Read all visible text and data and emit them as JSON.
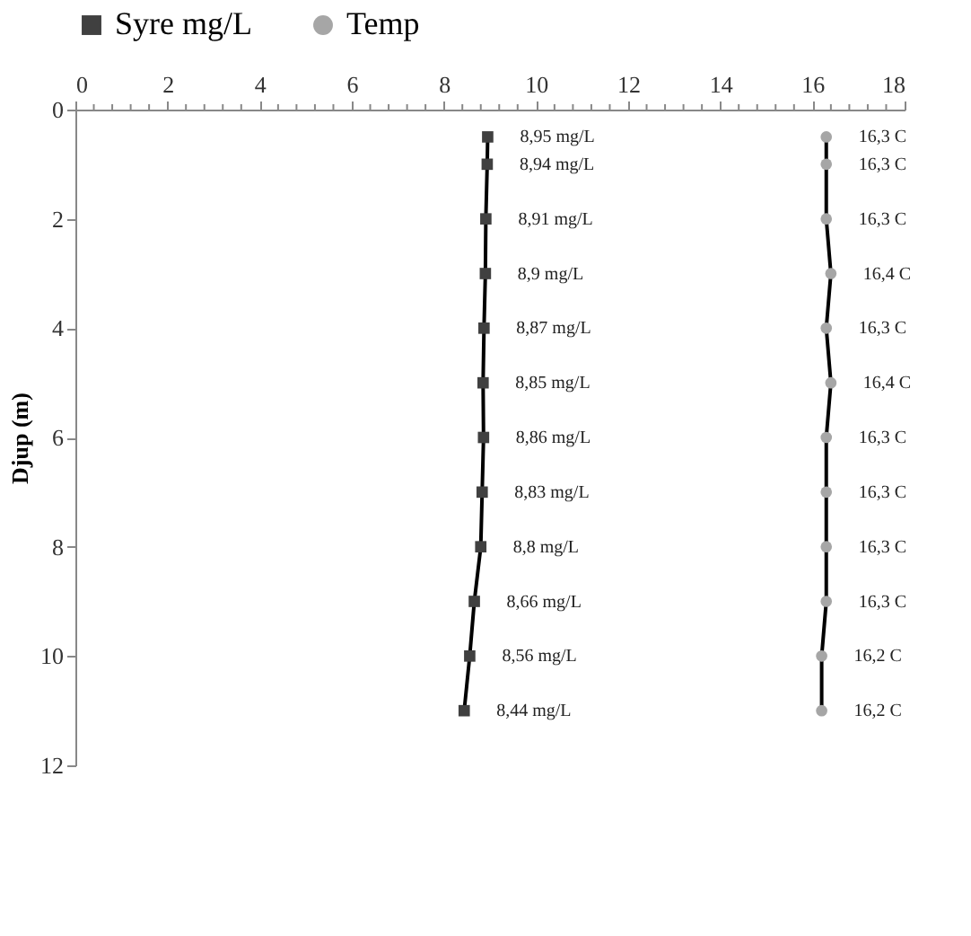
{
  "chart_data": {
    "type": "line",
    "ylabel": "Djup (m)",
    "xlim": [
      0,
      18
    ],
    "xticks": [
      0,
      {
        "value": 0.4,
        "label": null
      },
      {
        "value": 0.8,
        "label": null
      },
      {
        "value": 1.2,
        "label": null
      },
      {
        "value": 1.6,
        "label": null
      },
      2,
      {
        "value": 2.4,
        "label": null
      },
      {
        "value": 2.8,
        "label": null
      },
      {
        "value": 3.2,
        "label": null
      },
      {
        "value": 3.6,
        "label": null
      },
      4,
      {
        "value": 4.4,
        "label": null
      },
      {
        "value": 4.8,
        "label": null
      },
      {
        "value": 5.2,
        "label": null
      },
      {
        "value": 5.6,
        "label": null
      },
      6,
      {
        "value": 6.4,
        "label": null
      },
      {
        "value": 6.8,
        "label": null
      },
      {
        "value": 7.2,
        "label": null
      },
      {
        "value": 7.6,
        "label": null
      },
      8,
      {
        "value": 8.4,
        "label": null
      },
      {
        "value": 8.8,
        "label": null
      },
      {
        "value": 9.2,
        "label": null
      },
      {
        "value": 9.6,
        "label": null
      },
      10,
      {
        "value": 10.4,
        "label": null
      },
      {
        "value": 10.8,
        "label": null
      },
      {
        "value": 11.2,
        "label": null
      },
      {
        "value": 11.6,
        "label": null
      },
      12,
      {
        "value": 12.4,
        "label": null
      },
      {
        "value": 12.8,
        "label": null
      },
      {
        "value": 13.2,
        "label": null
      },
      {
        "value": 13.6,
        "label": null
      },
      14,
      {
        "value": 14.4,
        "label": null
      },
      {
        "value": 14.8,
        "label": null
      },
      {
        "value": 15.2,
        "label": null
      },
      {
        "value": 15.6,
        "label": null
      },
      16,
      {
        "value": 16.4,
        "label": null
      },
      {
        "value": 16.8,
        "label": null
      },
      {
        "value": 17.2,
        "label": null
      },
      {
        "value": 17.6,
        "label": null
      },
      18
    ],
    "ylim": [
      12,
      0
    ],
    "yticks": [
      0,
      2,
      4,
      6,
      8,
      10,
      12
    ],
    "grid": false,
    "legend": "top",
    "line_style": "solid",
    "orientation": "horizontal",
    "series": [
      {
        "name": "Syre mg/L",
        "color": "#404040",
        "marker": "square",
        "x": [
          0.5,
          1,
          2,
          3,
          4,
          5,
          6,
          7,
          8,
          9,
          10,
          11
        ],
        "values": [
          8.95,
          8.94,
          8.91,
          8.9,
          8.87,
          8.85,
          8.86,
          8.83,
          8.8,
          8.66,
          8.56,
          8.44
        ],
        "value_labels": [
          "8,95 mg/L",
          "8,94 mg/L",
          "8,91 mg/L",
          "8,9 mg/L",
          "8,87 mg/L",
          "8,85 mg/L",
          "8,86 mg/L",
          "8,83 mg/L",
          "8,8 mg/L",
          "8,66 mg/L",
          "8,56 mg/L",
          "8,44 mg/L"
        ]
      },
      {
        "name": "Temp",
        "color": "#a6a6a6",
        "marker": "circle",
        "x": [
          0.5,
          1,
          2,
          3,
          4,
          5,
          6,
          7,
          8,
          9,
          10,
          11
        ],
        "values": [
          16.3,
          16.3,
          16.3,
          16.4,
          16.3,
          16.4,
          16.3,
          16.3,
          16.3,
          16.3,
          16.2,
          16.2
        ],
        "value_labels": [
          "16,3 C",
          "16,3 C",
          "16,3 C",
          "16,4 C",
          "16,3 C",
          "16,4 C",
          "16,3 C",
          "16,3 C",
          "16,3 C",
          "16,3 C",
          "16,2 C",
          "16,2 C"
        ]
      }
    ]
  }
}
